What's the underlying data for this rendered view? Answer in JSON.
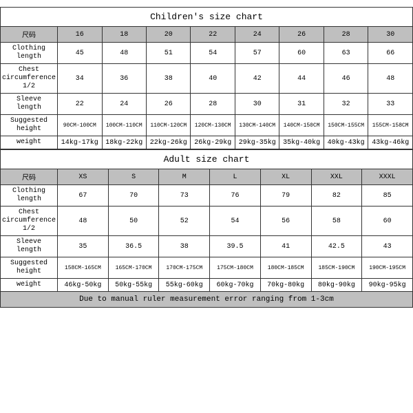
{
  "children_table": {
    "title": "Children's size chart",
    "size_label": "尺码",
    "columns": [
      "16",
      "18",
      "20",
      "22",
      "24",
      "26",
      "28",
      "30"
    ],
    "rows": [
      {
        "label": "Clothing length",
        "values": [
          "45",
          "48",
          "51",
          "54",
          "57",
          "60",
          "63",
          "66"
        ]
      },
      {
        "label": "Chest circumference 1/2",
        "values": [
          "34",
          "36",
          "38",
          "40",
          "42",
          "44",
          "46",
          "48"
        ]
      },
      {
        "label": "Sleeve length",
        "values": [
          "22",
          "24",
          "26",
          "28",
          "30",
          "31",
          "32",
          "33"
        ]
      },
      {
        "label": "Suggested height",
        "values": [
          "90CM-100CM",
          "100CM-110CM",
          "110CM-120CM",
          "120CM-130CM",
          "130CM-140CM",
          "140CM-150CM",
          "150CM-155CM",
          "155CM-158CM"
        ],
        "small": true
      },
      {
        "label": "weight",
        "values": [
          "14kg-17kg",
          "18kg-22kg",
          "22kg-26kg",
          "26kg-29kg",
          "29kg-35kg",
          "35kg-40kg",
          "40kg-43kg",
          "43kg-46kg"
        ]
      }
    ]
  },
  "adult_table": {
    "title": "Adult size chart",
    "size_label": "尺码",
    "columns": [
      "XS",
      "S",
      "M",
      "L",
      "XL",
      "XXL",
      "XXXL"
    ],
    "rows": [
      {
        "label": "Clothing length",
        "values": [
          "67",
          "70",
          "73",
          "76",
          "79",
          "82",
          "85"
        ]
      },
      {
        "label": "Chest circumference 1/2",
        "values": [
          "48",
          "50",
          "52",
          "54",
          "56",
          "58",
          "60"
        ]
      },
      {
        "label": "Sleeve length",
        "values": [
          "35",
          "36.5",
          "38",
          "39.5",
          "41",
          "42.5",
          "43"
        ]
      },
      {
        "label": "Suggested height",
        "values": [
          "158CM-165CM",
          "165CM-170CM",
          "170CM-175CM",
          "175CM-180CM",
          "180CM-185CM",
          "185CM-190CM",
          "190CM-195CM"
        ],
        "small": true
      },
      {
        "label": "weight",
        "values": [
          "46kg-50kg",
          "50kg-55kg",
          "55kg-60kg",
          "60kg-70kg",
          "70kg-80kg",
          "80kg-90kg",
          "90kg-95kg"
        ]
      }
    ],
    "footer": "Due to manual ruler measurement error ranging from 1-3cm"
  },
  "column_widths": {
    "label": "13%"
  }
}
